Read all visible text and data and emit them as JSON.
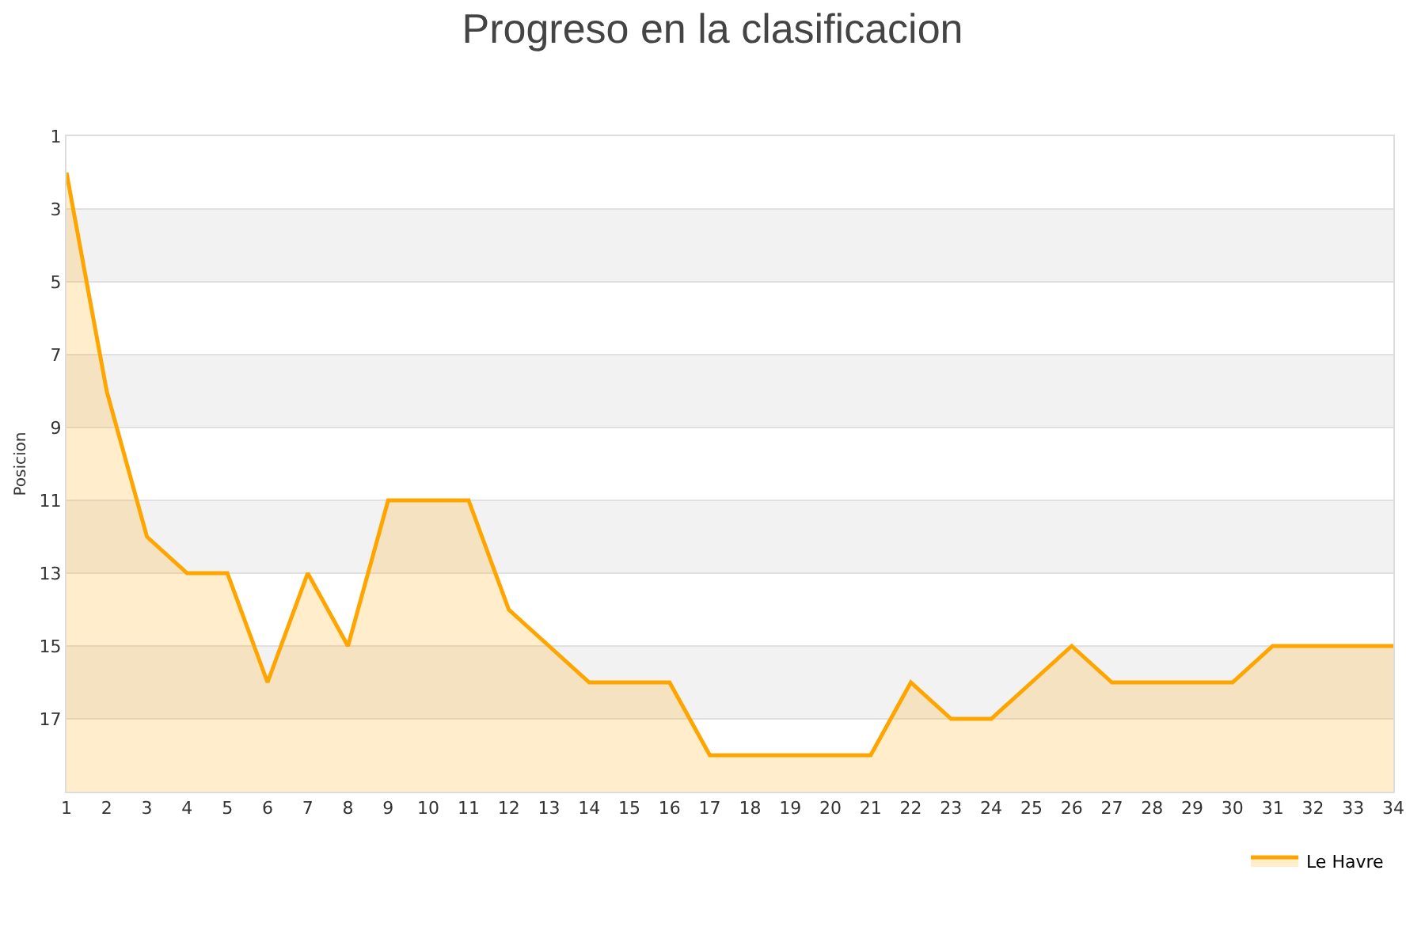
{
  "chart_data": {
    "type": "area",
    "title": "Progreso en la clasificacion",
    "ylabel": "Posicion",
    "x": [
      1,
      2,
      3,
      4,
      5,
      6,
      7,
      8,
      9,
      10,
      11,
      12,
      13,
      14,
      15,
      16,
      17,
      18,
      19,
      20,
      21,
      22,
      23,
      24,
      25,
      26,
      27,
      28,
      29,
      30,
      31,
      32,
      33,
      34
    ],
    "series": [
      {
        "name": "Le Havre",
        "color": "#ffa500",
        "values": [
          2,
          8,
          12,
          13,
          13,
          16,
          13,
          15,
          11,
          11,
          11,
          14,
          15,
          16,
          16,
          16,
          18,
          18,
          18,
          18,
          18,
          16,
          17,
          17,
          16,
          15,
          16,
          16,
          16,
          16,
          15,
          15,
          15,
          15
        ]
      }
    ],
    "xlim": [
      1,
      34
    ],
    "xticks": [
      1,
      2,
      3,
      4,
      5,
      6,
      7,
      8,
      9,
      10,
      11,
      12,
      13,
      14,
      15,
      16,
      17,
      18,
      19,
      20,
      21,
      22,
      23,
      24,
      25,
      26,
      27,
      28,
      29,
      30,
      31,
      32,
      33,
      34
    ],
    "ylim": [
      19,
      1
    ],
    "yticks": [
      1,
      3,
      5,
      7,
      9,
      11,
      13,
      15,
      17
    ],
    "bands": [
      {
        "axis": "y",
        "from": 3,
        "to": 5,
        "color": "#f2f2f2"
      },
      {
        "axis": "y",
        "from": 7,
        "to": 9,
        "color": "#f2f2f2"
      },
      {
        "axis": "y",
        "from": 11,
        "to": 13,
        "color": "#f2f2f2"
      },
      {
        "axis": "y",
        "from": 15,
        "to": 17,
        "color": "#f2f2f2"
      }
    ],
    "grid": "y",
    "legend": "bottom right"
  }
}
